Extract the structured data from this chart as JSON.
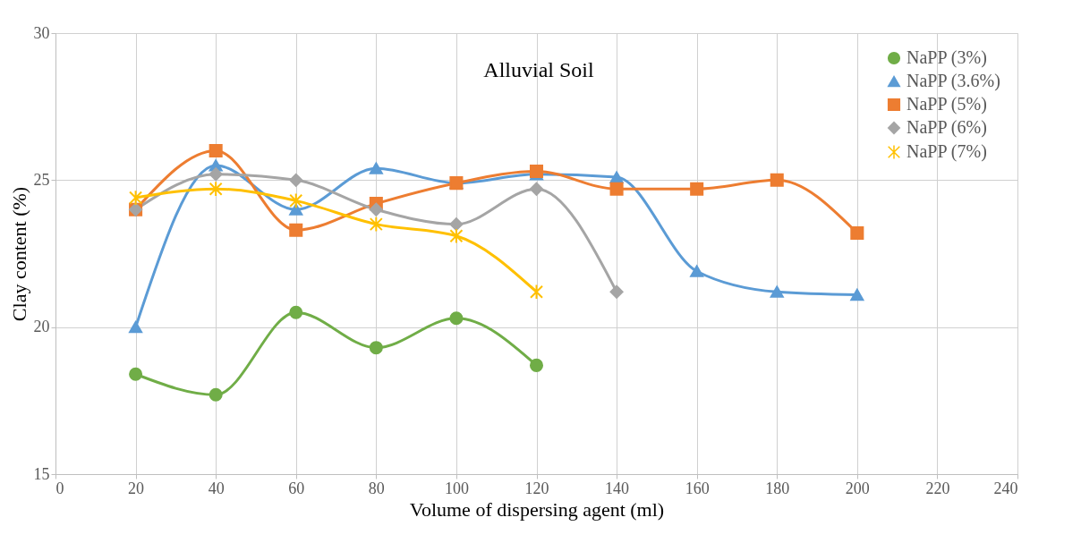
{
  "chart_data": {
    "type": "line",
    "xlabel": "Volume of dispersing agent (ml)",
    "ylabel": "Clay content (%)",
    "annotations": [
      "Alluvial Soil"
    ],
    "xlim": [
      0,
      240
    ],
    "xticks": [
      0,
      20,
      40,
      60,
      80,
      100,
      120,
      140,
      160,
      180,
      200,
      220,
      240
    ],
    "ylim": [
      15,
      30
    ],
    "yticks": [
      15,
      20,
      25,
      30
    ],
    "grid": true,
    "legend": "top right",
    "line_style": "solid",
    "series": [
      {
        "name": "NaPP (3%)",
        "color": "#70ad47",
        "marker": "circle",
        "x": [
          20,
          40,
          60,
          80,
          100,
          120
        ],
        "values": [
          18.4,
          17.7,
          20.5,
          19.3,
          20.3,
          18.7
        ]
      },
      {
        "name": "NaPP (3.6%)",
        "color": "#5b9bd5",
        "marker": "triangle",
        "x": [
          20,
          40,
          60,
          80,
          100,
          120,
          140,
          160,
          180,
          200
        ],
        "values": [
          20.0,
          25.5,
          24.0,
          25.4,
          24.9,
          25.2,
          25.1,
          21.9,
          21.2,
          21.1
        ]
      },
      {
        "name": "NaPP (5%)",
        "color": "#ed7d31",
        "marker": "square",
        "x": [
          20,
          40,
          60,
          80,
          100,
          120,
          140,
          160,
          180,
          200
        ],
        "values": [
          24.0,
          26.0,
          23.3,
          24.2,
          24.9,
          25.3,
          24.7,
          24.7,
          25.0,
          23.2
        ]
      },
      {
        "name": "NaPP (6%)",
        "color": "#a5a5a5",
        "marker": "diamond",
        "x": [
          20,
          40,
          60,
          80,
          100,
          120,
          140
        ],
        "values": [
          24.0,
          25.2,
          25.0,
          24.0,
          23.5,
          24.7,
          21.2
        ]
      },
      {
        "name": "NaPP (7%)",
        "color": "#ffc000",
        "marker": "cross",
        "x": [
          20,
          40,
          60,
          80,
          100,
          120
        ],
        "values": [
          24.4,
          24.7,
          24.3,
          23.5,
          23.1,
          21.2
        ]
      }
    ]
  }
}
